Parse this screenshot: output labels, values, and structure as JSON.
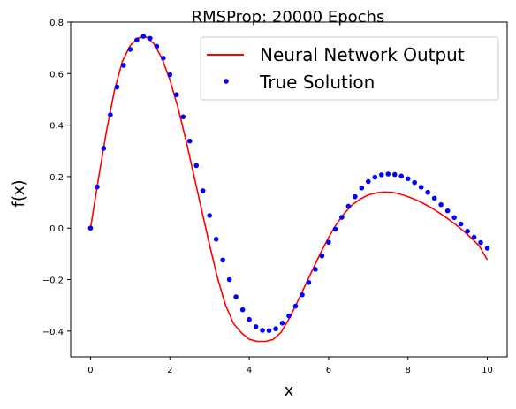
{
  "chart_data": {
    "type": "line",
    "title": "RMSProp: 20000 Epochs",
    "xlabel": "x",
    "ylabel": "f(x)",
    "xlim": [
      -0.5,
      10.5
    ],
    "ylim": [
      -0.5,
      0.8
    ],
    "xticks": [
      0,
      2,
      4,
      6,
      8,
      10
    ],
    "yticks": [
      -0.4,
      -0.2,
      0.0,
      0.2,
      0.4,
      0.6,
      0.8
    ],
    "ytick_labels": [
      "−0.4",
      "−0.2",
      "0.0",
      "0.2",
      "0.4",
      "0.6",
      "0.8"
    ],
    "grid": false,
    "legend_position": "top-right",
    "series": [
      {
        "name": "Neural Network Output",
        "style": "line",
        "color": "#ff0000",
        "x": [
          0,
          0.2,
          0.4,
          0.6,
          0.8,
          1.0,
          1.2,
          1.4,
          1.6,
          1.8,
          2.0,
          2.2,
          2.4,
          2.6,
          2.8,
          3.0,
          3.2,
          3.4,
          3.6,
          3.8,
          4.0,
          4.2,
          4.4,
          4.6,
          4.8,
          5.0,
          5.2,
          5.4,
          5.6,
          5.8,
          6.0,
          6.2,
          6.4,
          6.6,
          6.8,
          7.0,
          7.2,
          7.4,
          7.6,
          7.8,
          8.0,
          8.2,
          8.4,
          8.6,
          8.8,
          9.0,
          9.2,
          9.4,
          9.6,
          9.8,
          10.0
        ],
        "y": [
          0.0,
          0.192,
          0.375,
          0.532,
          0.646,
          0.709,
          0.739,
          0.742,
          0.716,
          0.659,
          0.576,
          0.47,
          0.345,
          0.208,
          0.071,
          -0.065,
          -0.193,
          -0.298,
          -0.37,
          -0.406,
          -0.432,
          -0.44,
          -0.44,
          -0.433,
          -0.405,
          -0.353,
          -0.291,
          -0.226,
          -0.16,
          -0.096,
          -0.036,
          0.016,
          0.058,
          0.091,
          0.113,
          0.129,
          0.137,
          0.14,
          0.139,
          0.132,
          0.122,
          0.11,
          0.095,
          0.078,
          0.058,
          0.037,
          0.014,
          -0.011,
          -0.039,
          -0.07,
          -0.123
        ]
      },
      {
        "name": "True Solution",
        "style": "markers",
        "color": "#0000ff",
        "x": [
          0,
          0.167,
          0.333,
          0.5,
          0.667,
          0.833,
          1.0,
          1.167,
          1.333,
          1.5,
          1.667,
          1.833,
          2.0,
          2.167,
          2.333,
          2.5,
          2.667,
          2.833,
          3.0,
          3.167,
          3.333,
          3.5,
          3.667,
          3.833,
          4.0,
          4.167,
          4.333,
          4.5,
          4.667,
          4.833,
          5.0,
          5.167,
          5.333,
          5.5,
          5.667,
          5.833,
          6.0,
          6.167,
          6.333,
          6.5,
          6.667,
          6.833,
          7.0,
          7.167,
          7.333,
          7.5,
          7.667,
          7.833,
          8.0,
          8.167,
          8.333,
          8.5,
          8.667,
          8.833,
          9.0,
          9.167,
          9.333,
          9.5,
          9.667,
          9.833,
          10.0
        ],
        "y": [
          0.0,
          0.16,
          0.31,
          0.44,
          0.548,
          0.632,
          0.694,
          0.73,
          0.745,
          0.737,
          0.706,
          0.66,
          0.596,
          0.518,
          0.432,
          0.338,
          0.243,
          0.145,
          0.049,
          -0.043,
          -0.124,
          -0.2,
          -0.267,
          -0.317,
          -0.355,
          -0.383,
          -0.397,
          -0.398,
          -0.391,
          -0.369,
          -0.341,
          -0.303,
          -0.259,
          -0.211,
          -0.16,
          -0.108,
          -0.055,
          -0.004,
          0.042,
          0.085,
          0.122,
          0.156,
          0.181,
          0.198,
          0.207,
          0.21,
          0.208,
          0.202,
          0.192,
          0.177,
          0.159,
          0.139,
          0.116,
          0.091,
          0.067,
          0.041,
          0.016,
          -0.012,
          -0.035,
          -0.056,
          -0.078
        ]
      }
    ]
  }
}
